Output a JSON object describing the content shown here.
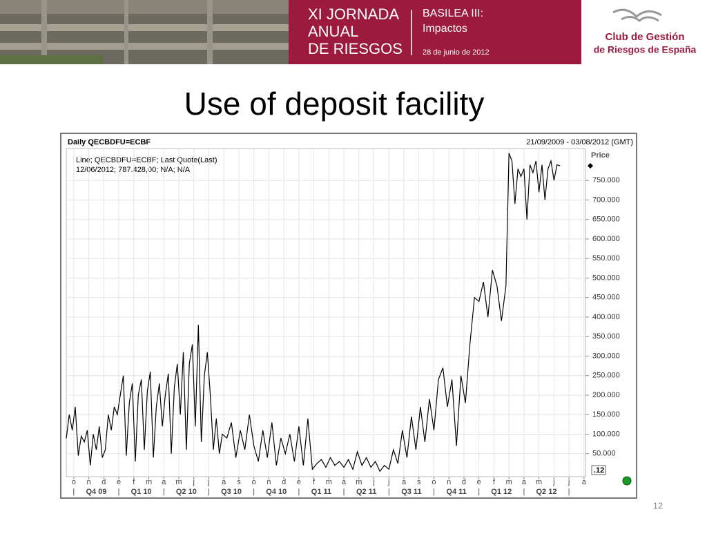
{
  "header": {
    "event": [
      "XI JORNADA",
      "ANUAL",
      "DE RIESGOS"
    ],
    "topic": [
      "BASILEA III:",
      "Impactos"
    ],
    "date": "28 de junio de 2012",
    "organizer": [
      "Club de Gestión",
      "de Riesgos de España"
    ]
  },
  "slide": {
    "title": "Use of deposit facility",
    "page": "12"
  },
  "chart_data": {
    "type": "line",
    "title": "Daily QECBDFU=ECBF",
    "subtitle": "21/09/2009 - 03/08/2012 (GMT)",
    "legend": [
      "Line; QECBDFU=ECBF; Last Quote(Last)",
      "12/06/2012; 787.428,00; N/A; N/A"
    ],
    "y_label": "Price",
    "scale_label": ".12",
    "grid": true,
    "ylim": [
      0,
      830000
    ],
    "yticks": [
      {
        "value": 50000,
        "label": "50.000"
      },
      {
        "value": 100000,
        "label": "100.000"
      },
      {
        "value": 150000,
        "label": "150.000"
      },
      {
        "value": 200000,
        "label": "200.000"
      },
      {
        "value": 250000,
        "label": "250.000"
      },
      {
        "value": 300000,
        "label": "300.000"
      },
      {
        "value": 350000,
        "label": "350.000"
      },
      {
        "value": 400000,
        "label": "400.000"
      },
      {
        "value": 450000,
        "label": "450.000"
      },
      {
        "value": 500000,
        "label": "500.000"
      },
      {
        "value": 550000,
        "label": "550.000"
      },
      {
        "value": 600000,
        "label": "600.000"
      },
      {
        "value": 650000,
        "label": "650.000"
      },
      {
        "value": 700000,
        "label": "700.000"
      },
      {
        "value": 750000,
        "label": "750.000"
      }
    ],
    "xlim": [
      -0.5,
      34.1
    ],
    "xticks": [
      {
        "value": 0,
        "label": "o"
      },
      {
        "value": 1,
        "label": "n"
      },
      {
        "value": 2,
        "label": "d"
      },
      {
        "value": 3,
        "label": "e"
      },
      {
        "value": 4,
        "label": "f"
      },
      {
        "value": 5,
        "label": "m"
      },
      {
        "value": 6,
        "label": "a"
      },
      {
        "value": 7,
        "label": "m"
      },
      {
        "value": 8,
        "label": "j"
      },
      {
        "value": 9,
        "label": "j"
      },
      {
        "value": 10,
        "label": "a"
      },
      {
        "value": 11,
        "label": "s"
      },
      {
        "value": 12,
        "label": "o"
      },
      {
        "value": 13,
        "label": "n"
      },
      {
        "value": 14,
        "label": "d"
      },
      {
        "value": 15,
        "label": "e"
      },
      {
        "value": 16,
        "label": "f"
      },
      {
        "value": 17,
        "label": "m"
      },
      {
        "value": 18,
        "label": "a"
      },
      {
        "value": 19,
        "label": "m"
      },
      {
        "value": 20,
        "label": "j"
      },
      {
        "value": 21,
        "label": "j"
      },
      {
        "value": 22,
        "label": "a"
      },
      {
        "value": 23,
        "label": "s"
      },
      {
        "value": 24,
        "label": "o"
      },
      {
        "value": 25,
        "label": "n"
      },
      {
        "value": 26,
        "label": "d"
      },
      {
        "value": 27,
        "label": "e"
      },
      {
        "value": 28,
        "label": "f"
      },
      {
        "value": 29,
        "label": "m"
      },
      {
        "value": 30,
        "label": "a"
      },
      {
        "value": 31,
        "label": "m"
      },
      {
        "value": 32,
        "label": "j"
      },
      {
        "value": 33,
        "label": "j"
      },
      {
        "value": 34,
        "label": "a"
      }
    ],
    "quarters": [
      "Q4 09",
      "Q1 10",
      "Q2 10",
      "Q3 10",
      "Q4 10",
      "Q1 11",
      "Q2 11",
      "Q3 11",
      "Q4 11",
      "Q1 12",
      "Q2 12"
    ],
    "series": [
      {
        "name": "QECBDFU=ECBF",
        "color": "#000000",
        "x": [
          -0.5,
          -0.3,
          -0.1,
          0.1,
          0.3,
          0.5,
          0.7,
          0.9,
          1.1,
          1.3,
          1.5,
          1.7,
          1.9,
          2.1,
          2.3,
          2.5,
          2.7,
          2.9,
          3.1,
          3.3,
          3.5,
          3.7,
          3.9,
          4.1,
          4.3,
          4.5,
          4.7,
          4.9,
          5.1,
          5.3,
          5.5,
          5.7,
          5.9,
          6.1,
          6.3,
          6.5,
          6.7,
          6.9,
          7.1,
          7.3,
          7.5,
          7.7,
          7.9,
          8.1,
          8.3,
          8.5,
          8.7,
          8.9,
          9.1,
          9.3,
          9.5,
          9.7,
          9.9,
          10.2,
          10.5,
          10.8,
          11.1,
          11.4,
          11.7,
          12.0,
          12.3,
          12.6,
          12.9,
          13.2,
          13.5,
          13.8,
          14.1,
          14.4,
          14.7,
          15.0,
          15.3,
          15.6,
          15.9,
          16.2,
          16.5,
          16.8,
          17.1,
          17.4,
          17.7,
          18.0,
          18.3,
          18.6,
          18.9,
          19.2,
          19.5,
          19.8,
          20.1,
          20.4,
          20.7,
          21.0,
          21.3,
          21.6,
          21.9,
          22.2,
          22.5,
          22.8,
          23.1,
          23.4,
          23.7,
          24.0,
          24.3,
          24.6,
          24.9,
          25.2,
          25.5,
          25.8,
          26.1,
          26.4,
          26.7,
          27.0,
          27.3,
          27.6,
          27.9,
          28.2,
          28.5,
          28.8,
          29.0,
          29.2,
          29.4,
          29.6,
          29.8,
          30.0,
          30.2,
          30.4,
          30.6,
          30.8,
          31.0,
          31.2,
          31.4,
          31.6,
          31.8,
          32.0,
          32.2,
          32.4
        ],
        "values": [
          89000,
          150000,
          110000,
          170000,
          45000,
          95000,
          80000,
          110000,
          20000,
          100000,
          60000,
          120000,
          40000,
          60000,
          150000,
          110000,
          170000,
          150000,
          200000,
          250000,
          45000,
          180000,
          230000,
          30000,
          200000,
          240000,
          60000,
          210000,
          260000,
          40000,
          170000,
          230000,
          120000,
          200000,
          255000,
          50000,
          220000,
          280000,
          150000,
          310000,
          60000,
          280000,
          330000,
          120000,
          380000,
          80000,
          250000,
          310000,
          200000,
          60000,
          140000,
          50000,
          100000,
          90000,
          130000,
          40000,
          110000,
          60000,
          150000,
          70000,
          30000,
          110000,
          40000,
          130000,
          20000,
          90000,
          50000,
          100000,
          30000,
          120000,
          20000,
          140000,
          10000,
          25000,
          35000,
          15000,
          40000,
          20000,
          30000,
          15000,
          35000,
          10000,
          55000,
          20000,
          40000,
          15000,
          30000,
          5000,
          20000,
          10000,
          60000,
          25000,
          110000,
          40000,
          145000,
          60000,
          170000,
          80000,
          190000,
          110000,
          240000,
          270000,
          170000,
          240000,
          70000,
          250000,
          180000,
          330000,
          450000,
          440000,
          490000,
          400000,
          520000,
          480000,
          390000,
          480000,
          820000,
          800000,
          690000,
          780000,
          760000,
          780000,
          650000,
          790000,
          770000,
          800000,
          720000,
          790000,
          700000,
          780000,
          800000,
          750000,
          790000,
          787428
        ]
      }
    ]
  }
}
